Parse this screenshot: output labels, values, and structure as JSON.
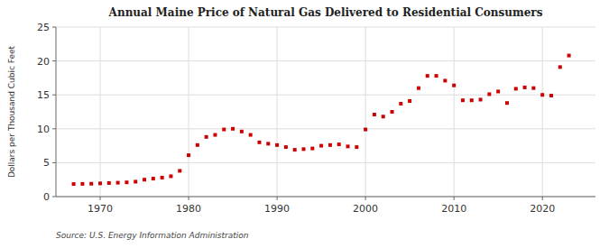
{
  "chart_data": {
    "type": "scatter",
    "title": "Annual Maine Price of Natural Gas Delivered to Residential Consumers",
    "ylabel": "Dollars per Thousand Cubic Feet",
    "source": "Source: U.S. Energy Information Administration",
    "color": "#cc0000",
    "marker": "square",
    "grid": true,
    "x": [
      1967,
      1968,
      1969,
      1970,
      1971,
      1972,
      1973,
      1974,
      1975,
      1976,
      1977,
      1978,
      1979,
      1980,
      1981,
      1982,
      1983,
      1984,
      1985,
      1986,
      1987,
      1988,
      1989,
      1990,
      1991,
      1992,
      1993,
      1994,
      1995,
      1996,
      1997,
      1998,
      1999,
      2000,
      2001,
      2002,
      2003,
      2004,
      2005,
      2006,
      2007,
      2008,
      2009,
      2010,
      2011,
      2012,
      2013,
      2014,
      2015,
      2016,
      2017,
      2018,
      2019,
      2020,
      2021,
      2022,
      2023
    ],
    "values": [
      1.85,
      1.88,
      1.9,
      1.95,
      2.0,
      2.05,
      2.1,
      2.2,
      2.5,
      2.65,
      2.8,
      3.0,
      3.8,
      6.1,
      7.6,
      8.8,
      9.1,
      9.9,
      10.0,
      9.6,
      9.1,
      8.0,
      7.8,
      7.6,
      7.3,
      6.9,
      7.0,
      7.1,
      7.5,
      7.6,
      7.7,
      7.4,
      7.3,
      9.9,
      12.1,
      11.8,
      12.5,
      13.7,
      14.1,
      16.0,
      17.8,
      17.8,
      17.1,
      16.4,
      14.2,
      14.2,
      14.3,
      15.1,
      15.5,
      13.8,
      15.9,
      16.1,
      16.0,
      15.0,
      14.9,
      19.1,
      20.8
    ],
    "xlim": [
      1965,
      2026
    ],
    "ylim": [
      0,
      25
    ],
    "xticks": [
      1970,
      1980,
      1990,
      2000,
      2010,
      2020
    ],
    "yticks": [
      0,
      5,
      10,
      15,
      20,
      25
    ]
  }
}
